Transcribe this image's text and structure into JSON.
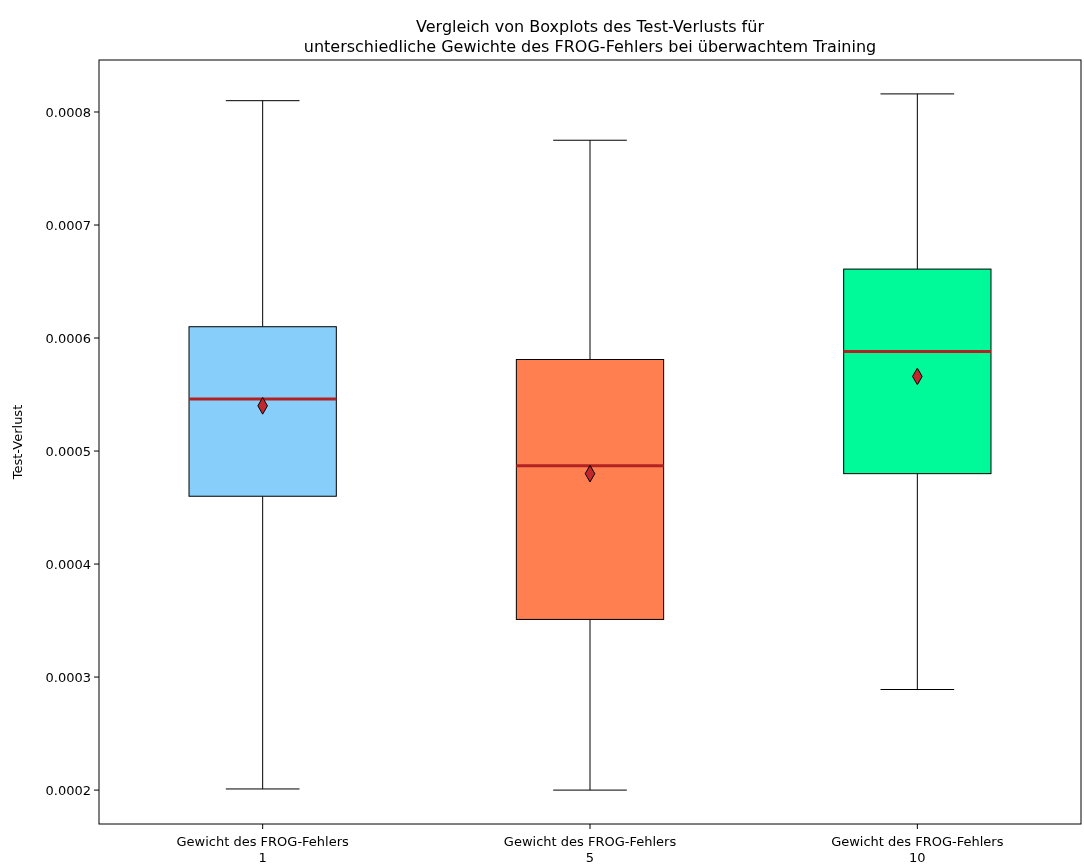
{
  "chart_data": {
    "type": "box",
    "title": "Vergleich von Boxplots des Test-Verlusts für\nunterschiedliche Gewichte des FROG-Fehlers bei überwachtem Training",
    "ylabel": "Test-Verlust",
    "categories": [
      "Gewicht des FROG-Fehlers\n1",
      "Gewicht des FROG-Fehlers\n5",
      "Gewicht des FROG-Fehlers\n10"
    ],
    "colors": [
      "#87cefa",
      "#ff7f50",
      "#00fa9a"
    ],
    "boxes": [
      {
        "low": 0.000201,
        "q1": 0.00046,
        "median": 0.000546,
        "q3": 0.00061,
        "high": 0.00081,
        "mean": 0.00054
      },
      {
        "low": 0.0002,
        "q1": 0.000351,
        "median": 0.000487,
        "q3": 0.000581,
        "high": 0.000775,
        "mean": 0.00048
      },
      {
        "low": 0.000289,
        "q1": 0.00048,
        "median": 0.000588,
        "q3": 0.000661,
        "high": 0.000816,
        "mean": 0.000566
      }
    ],
    "ylim": [
      0.00017,
      0.000846
    ],
    "yticks": [
      0.0002,
      0.0003,
      0.0004,
      0.0005,
      0.0006,
      0.0007,
      0.0008
    ],
    "grid": false,
    "marker": "diamond"
  }
}
